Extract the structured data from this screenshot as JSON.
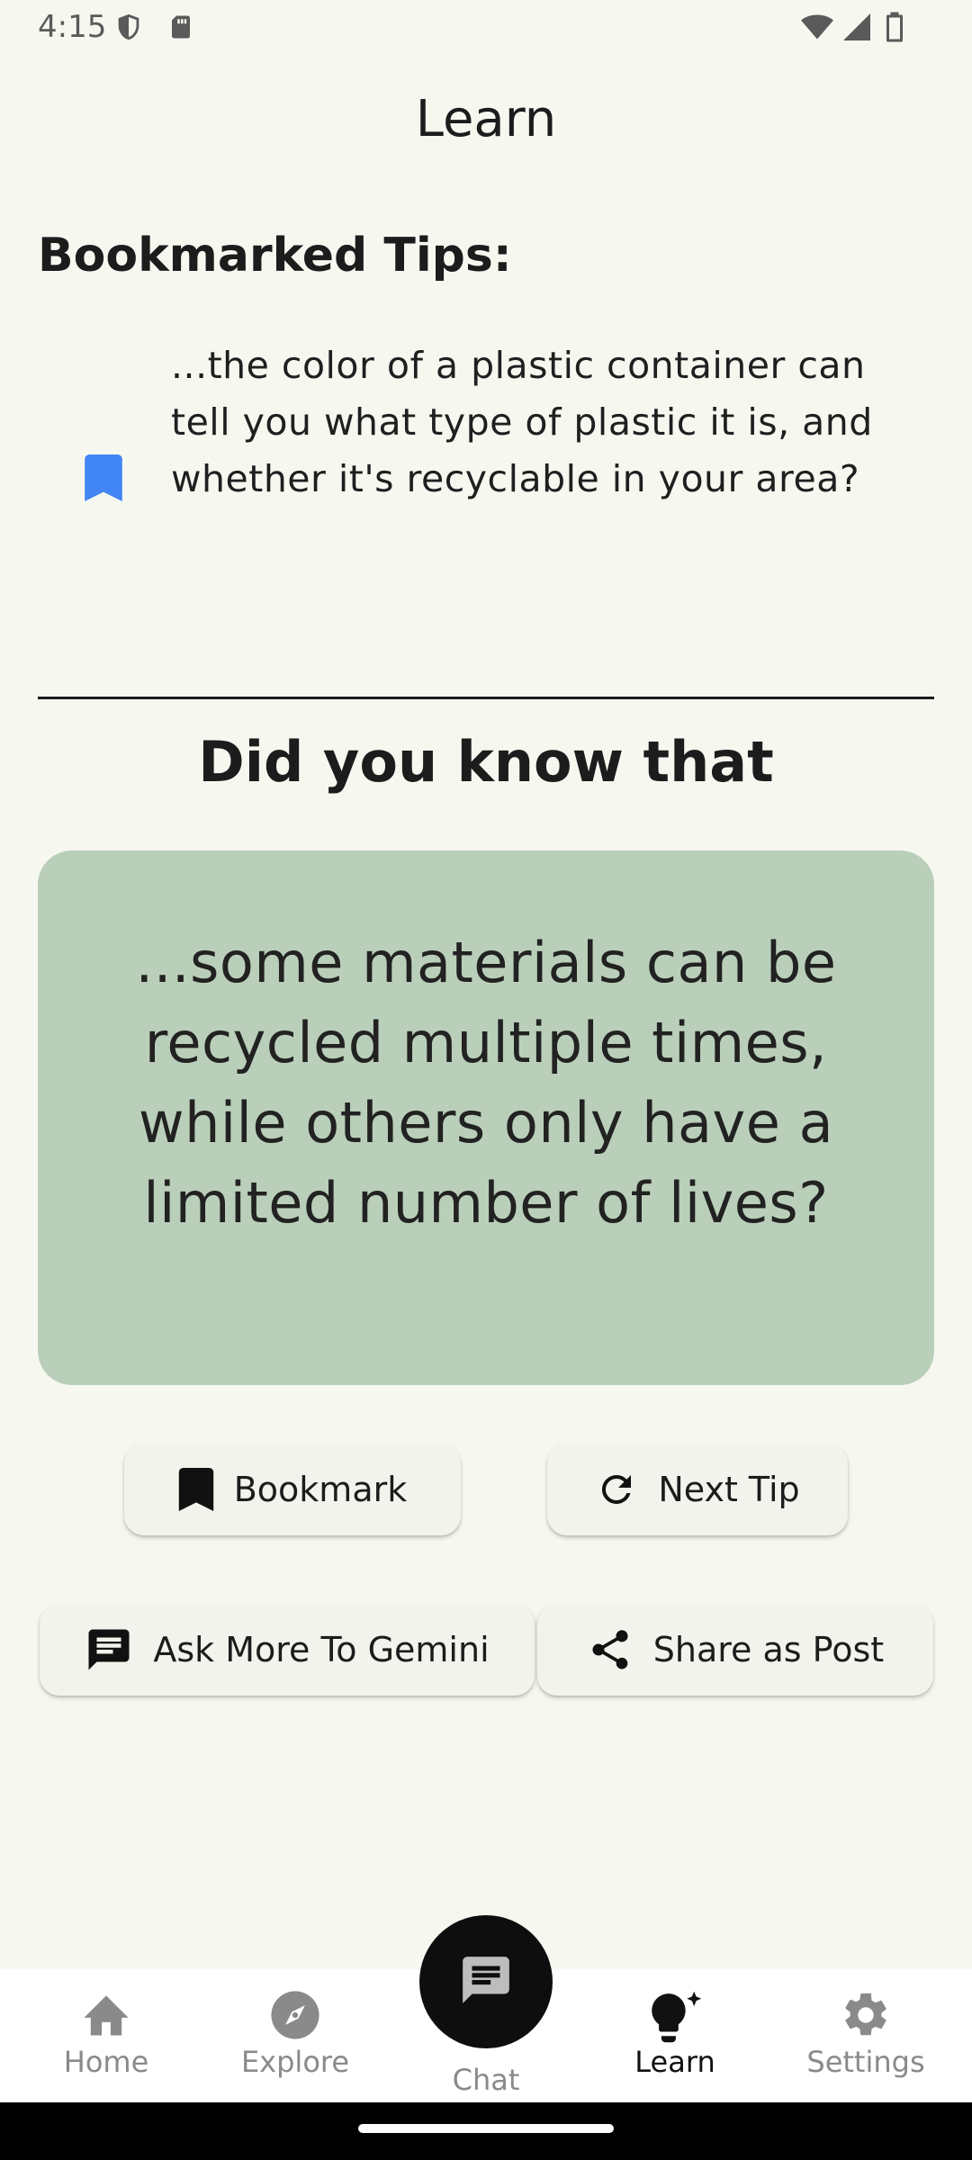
{
  "status_bar": {
    "time": "4:15"
  },
  "header": {
    "title": "Learn"
  },
  "bookmarks": {
    "section_title": "Bookmarked Tips:",
    "items": [
      {
        "text": "...the color of a plastic container can tell you what type of plastic it is, and whether it's recyclable in your area?"
      }
    ],
    "icon_color": "#4285f4"
  },
  "did_you_know": {
    "title": "Did you know that",
    "tip": "...some materials can be recycled multiple times, while others only have a limited number of lives?",
    "card_color": "#bacfb9"
  },
  "actions": {
    "bookmark_label": "Bookmark",
    "next_tip_label": "Next Tip",
    "ask_label": "Ask More To Gemini",
    "share_label": "Share as Post"
  },
  "bottom_nav": {
    "items": [
      {
        "label": "Home",
        "icon": "home-icon"
      },
      {
        "label": "Explore",
        "icon": "compass-icon"
      },
      {
        "label": "Chat",
        "icon": "chat-icon"
      },
      {
        "label": "Learn",
        "icon": "lightbulb-icon",
        "active": true
      },
      {
        "label": "Settings",
        "icon": "gear-icon"
      }
    ]
  }
}
